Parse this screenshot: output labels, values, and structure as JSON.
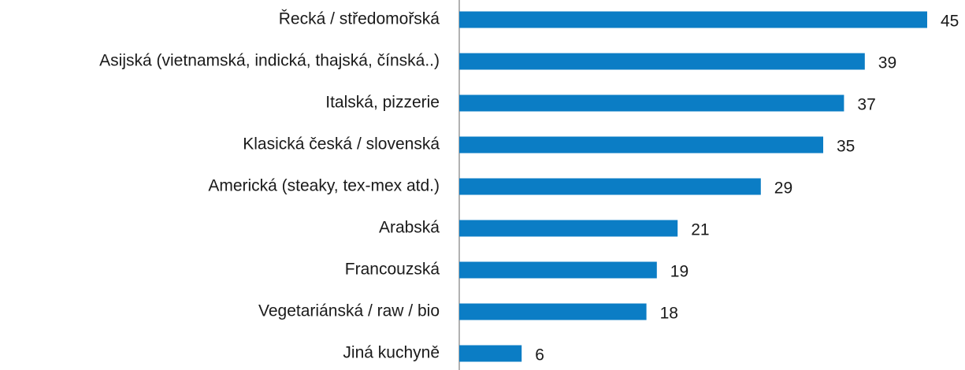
{
  "chart_data": {
    "type": "bar",
    "orientation": "horizontal",
    "categories": [
      "Řecká / středomořská",
      "Asijská (vietnamská, indická, thajská, čínská..)",
      "Italská, pizzerie",
      "Klasická česká / slovenská",
      "Americká (steaky, tex-mex atd.)",
      "Arabská",
      "Francouzská",
      "Vegetariánská / raw / bio",
      "Jiná kuchyně"
    ],
    "values": [
      45,
      39,
      37,
      35,
      29,
      21,
      19,
      18,
      6
    ],
    "color": "#0b7dc5"
  }
}
